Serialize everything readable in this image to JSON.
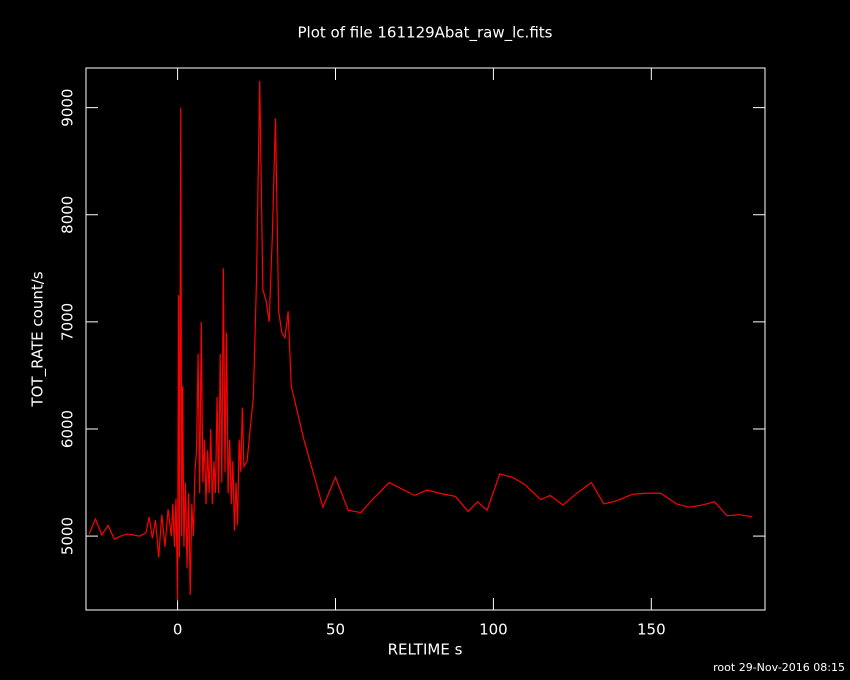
{
  "chart_data": {
    "type": "line",
    "title": "Plot of file 161129Abat_raw_lc.fits",
    "xlabel": "RELTIME  s",
    "ylabel": "TOT_RATE  count/s",
    "footer": "root 29-Nov-2016 08:15",
    "x": [
      -28,
      -26,
      -24,
      -22,
      -20,
      -18,
      -16,
      -14,
      -12,
      -10,
      -9,
      -8,
      -7,
      -6,
      -5,
      -4,
      -3,
      -2,
      -1.5,
      -1,
      -0.5,
      0,
      0.3,
      0.6,
      1,
      1.3,
      1.6,
      2,
      2.5,
      3,
      3.5,
      4,
      4.5,
      5,
      5.5,
      6,
      6.5,
      7,
      7.5,
      8,
      8.5,
      9,
      9.5,
      10,
      10.5,
      11,
      11.5,
      12,
      12.5,
      13,
      13.5,
      14,
      14.5,
      15,
      15.5,
      16,
      16.5,
      17,
      17.5,
      18,
      18.5,
      19,
      19.5,
      20,
      20.5,
      21,
      22,
      23,
      24,
      25,
      26,
      27,
      28,
      29,
      30,
      31,
      32,
      33,
      34,
      35,
      36,
      40,
      46,
      50,
      54,
      58,
      62,
      67,
      75,
      79,
      83,
      88,
      92,
      95,
      98,
      102,
      106,
      110,
      115,
      118,
      122,
      126,
      131,
      135,
      139,
      144,
      148,
      153,
      158,
      162,
      166,
      170,
      174,
      178,
      182
    ],
    "series": [
      {
        "color": "#ff0000",
        "values": [
          5020,
          5160,
          5010,
          5100,
          4970,
          5000,
          5020,
          5010,
          5000,
          5030,
          5180,
          4980,
          5150,
          4800,
          5200,
          4900,
          5250,
          5000,
          5300,
          4900,
          5350,
          4400,
          7250,
          4800,
          9000,
          5000,
          6400,
          4900,
          5500,
          4700,
          5400,
          4450,
          5300,
          5000,
          5600,
          5800,
          6700,
          5400,
          7000,
          5500,
          5900,
          5300,
          5800,
          5400,
          6000,
          5300,
          5700,
          5400,
          6300,
          5400,
          6700,
          5500,
          7500,
          5600,
          6900,
          5400,
          5900,
          5300,
          5700,
          5050,
          5500,
          5100,
          5900,
          5600,
          6200,
          5650,
          5700,
          6000,
          6300,
          7400,
          9250,
          7300,
          7200,
          7000,
          7800,
          8900,
          7100,
          6900,
          6850,
          7100,
          6400,
          5900,
          5270,
          5550,
          5240,
          5220,
          5350,
          5500,
          5380,
          5430,
          5400,
          5370,
          5230,
          5320,
          5240,
          5580,
          5550,
          5480,
          5340,
          5380,
          5290,
          5390,
          5500,
          5300,
          5330,
          5390,
          5400,
          5400,
          5300,
          5270,
          5290,
          5320,
          5190,
          5200,
          5180
        ]
      }
    ],
    "xlim": [
      -29,
      186
    ],
    "ylim": [
      4310,
      9370
    ],
    "xticks": [
      0,
      50,
      100,
      150
    ],
    "yticks": [
      5000,
      6000,
      7000,
      8000,
      9000
    ]
  }
}
